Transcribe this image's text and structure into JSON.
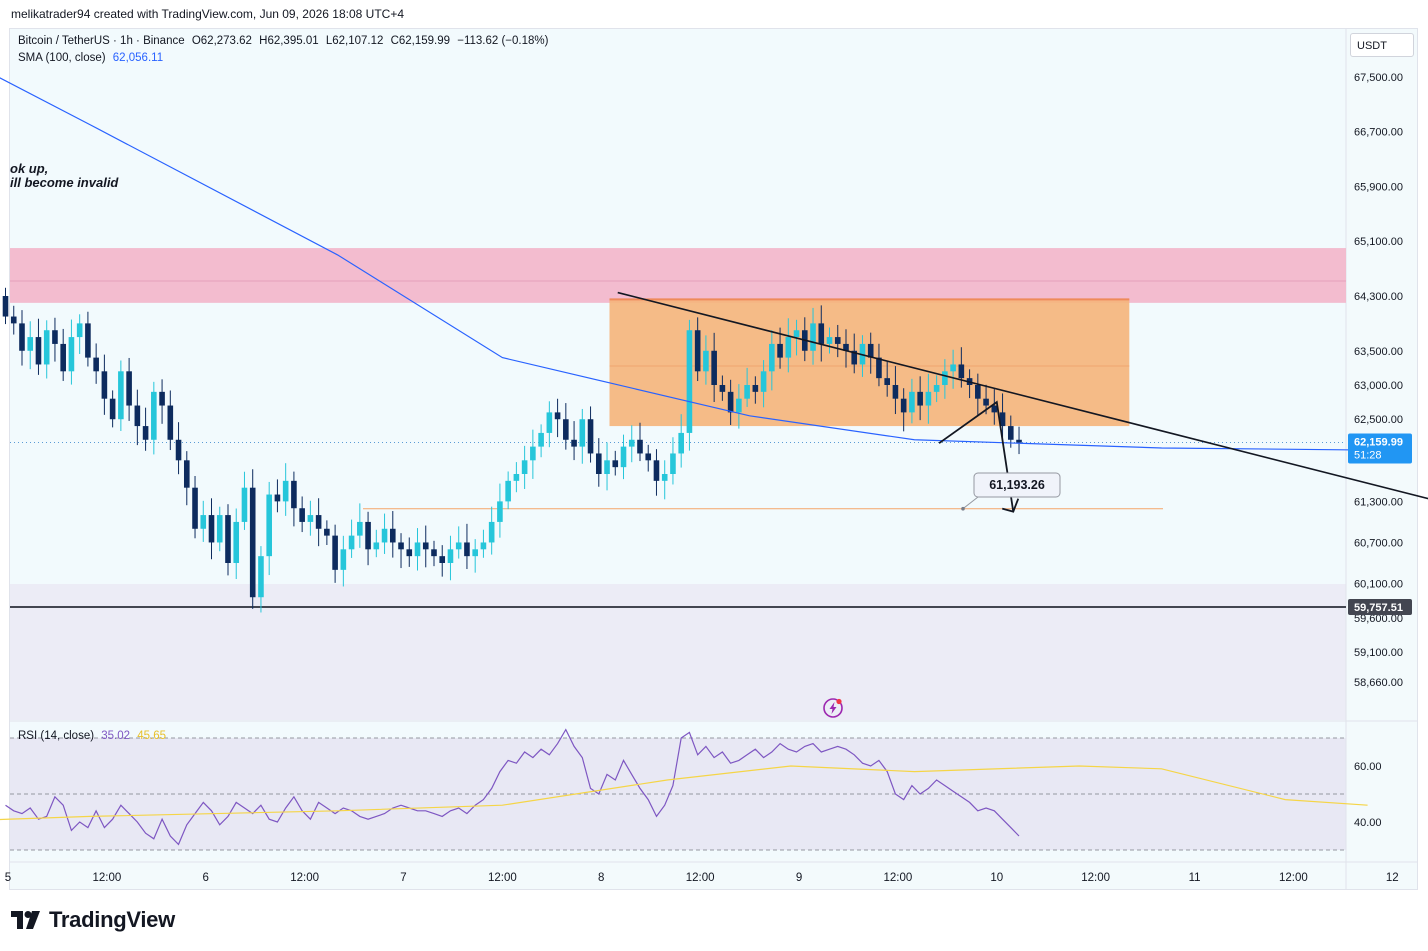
{
  "header": {
    "text": "melikatrader94 created with TradingView.com, Jun 09, 2026 18:08 UTC+4"
  },
  "legend": {
    "symbol": "Bitcoin / TetherUS · 1h · Binance",
    "open": "O62,273.62",
    "high": "H62,395.01",
    "low": "L62,107.12",
    "close": "C62,159.99",
    "change": "−113.62 (−0.18%)",
    "sma_label": "SMA (100, close)",
    "sma_value": "62,056.11",
    "rsi_label": "RSI (14, close)",
    "rsi_value": "35.02",
    "rsi_ma_value": "45.65"
  },
  "currency_button": "USDT",
  "note": {
    "line1": "ok up,",
    "line2": "ill become invalid"
  },
  "logo": "TradingView",
  "colors": {
    "up": "#26c6da",
    "down": "#0d2b5e",
    "sma": "#2962ff",
    "supply_zone": "#f2b8cc",
    "box": "#f5b47a",
    "rsi": "#7e57c2",
    "rsi_ma": "#f5d547",
    "price_label": "#2196f3"
  },
  "chart_data": {
    "type": "candlestick",
    "symbol": "Bitcoin / TetherUS",
    "interval": "1h",
    "y_ticks": [
      67500,
      66700,
      65900,
      65100,
      64300,
      63500,
      63000,
      62500,
      61300,
      60700,
      60100,
      59600,
      59100,
      58660
    ],
    "y_tick_labels": [
      "67,500.00",
      "66,700.00",
      "65,900.00",
      "65,100.00",
      "64,300.00",
      "63,500.00",
      "63,000.00",
      "62,500.00",
      "61,300.00",
      "60,700.00",
      "60,100.00",
      "59,600.00",
      "59,100.00",
      "58,660.00"
    ],
    "x_ticks": [
      "5",
      "12:00",
      "6",
      "12:00",
      "7",
      "12:00",
      "8",
      "12:00",
      "9",
      "12:00",
      "10",
      "12:00",
      "11",
      "12:00",
      "12",
      "12:00"
    ],
    "last_price": {
      "value": 62159.99,
      "label": "62,159.99",
      "countdown": "51:28"
    },
    "horizontal_line": {
      "value": 59757.51,
      "label": "59,757.51"
    },
    "target": {
      "value": 61193.26,
      "label": "61,193.26"
    },
    "supply_zone": [
      64200,
      65000
    ],
    "range_box": {
      "from": "Jun 8 01:00",
      "to": "Jun 10 16:00",
      "low": 62400,
      "high": 64250
    },
    "trendline": {
      "from": [
        "Jun 8 02:00",
        64350
      ],
      "to": [
        "Jun 12 22:00",
        60800
      ]
    },
    "projection": [
      [
        "Jun 9 17:00",
        62150
      ],
      [
        "Jun 10 00:00",
        62750
      ],
      [
        "Jun 10 02:00",
        61150
      ]
    ],
    "sma_100": [
      [
        -10,
        68050
      ],
      [
        10,
        66800
      ],
      [
        40,
        64900
      ],
      [
        60,
        63400
      ],
      [
        90,
        62550
      ],
      [
        110,
        62200
      ],
      [
        140,
        62080
      ],
      [
        165,
        62050
      ]
    ],
    "rsi_ticks": [
      60,
      40
    ],
    "rsi_ticks_labels": [
      "60.00",
      "40.00"
    ],
    "rsi_bands": [
      70,
      50,
      30
    ],
    "rsi_ma": [
      [
        -10,
        40
      ],
      [
        10,
        42
      ],
      [
        40,
        44
      ],
      [
        60,
        46
      ],
      [
        80,
        55
      ],
      [
        95,
        60
      ],
      [
        110,
        58
      ],
      [
        130,
        60
      ],
      [
        140,
        59
      ],
      [
        155,
        48
      ],
      [
        165,
        46
      ]
    ]
  }
}
